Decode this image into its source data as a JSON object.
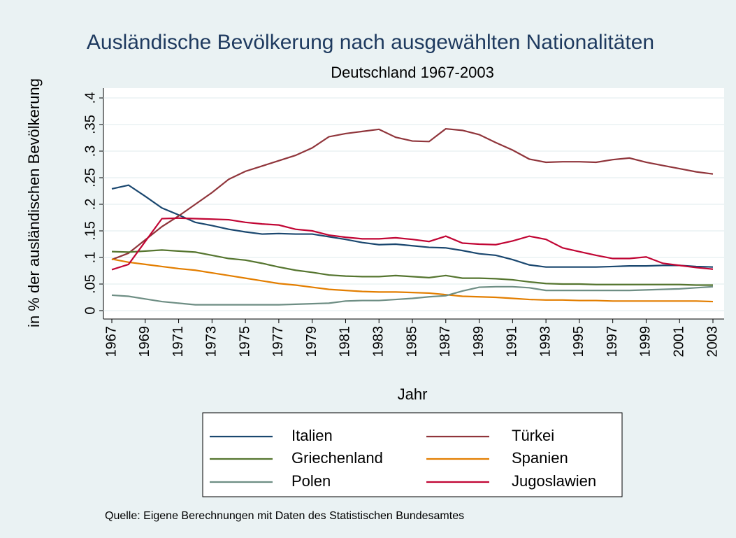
{
  "chart_data": {
    "type": "line",
    "title": "Ausländische Bevölkerung nach ausgewählten Nationalitäten",
    "subtitle": "Deutschland 1967-2003",
    "y_label": "in % der ausländischen Bevölkerung",
    "x_label": "Jahr",
    "note": "Quelle: Eigene Berechnungen mit Daten des Statistischen Bundesamtes",
    "legend_position": "bottom",
    "grid": true,
    "x": [
      1967,
      1968,
      1969,
      1970,
      1971,
      1972,
      1973,
      1974,
      1975,
      1976,
      1977,
      1978,
      1979,
      1980,
      1981,
      1982,
      1983,
      1984,
      1985,
      1986,
      1987,
      1988,
      1989,
      1990,
      1991,
      1992,
      1993,
      1994,
      1995,
      1996,
      1997,
      1998,
      1999,
      2000,
      2001,
      2002,
      2003
    ],
    "xlim": [
      1967,
      2003
    ],
    "xticks": [
      1967,
      1969,
      1971,
      1973,
      1975,
      1977,
      1979,
      1981,
      1983,
      1985,
      1987,
      1989,
      1991,
      1993,
      1995,
      1997,
      1999,
      2001,
      2003
    ],
    "ylim": [
      0,
      0.4
    ],
    "yticks": [
      0,
      {
        "value": 0.05,
        "label": ".05"
      },
      {
        "value": 0.1,
        "label": ".1"
      },
      {
        "value": 0.15,
        "label": ".15"
      },
      {
        "value": 0.2,
        "label": ".2"
      },
      {
        "value": 0.25,
        "label": ".25"
      },
      {
        "value": 0.3,
        "label": ".3"
      },
      {
        "value": 0.35,
        "label": ".35"
      },
      {
        "value": 0.4,
        "label": ".4"
      }
    ],
    "series": [
      {
        "name": "Italien",
        "color": "#1a476f",
        "values": [
          0.229,
          0.236,
          0.215,
          0.193,
          0.18,
          0.166,
          0.16,
          0.153,
          0.148,
          0.144,
          0.145,
          0.144,
          0.144,
          0.139,
          0.134,
          0.128,
          0.124,
          0.125,
          0.122,
          0.119,
          0.118,
          0.113,
          0.107,
          0.104,
          0.096,
          0.086,
          0.082,
          0.082,
          0.082,
          0.082,
          0.083,
          0.084,
          0.084,
          0.085,
          0.085,
          0.083,
          0.082
        ]
      },
      {
        "name": "Türkei",
        "color": "#90353b",
        "values": [
          0.096,
          0.108,
          0.133,
          0.158,
          0.178,
          0.2,
          0.222,
          0.247,
          0.262,
          0.272,
          0.282,
          0.292,
          0.306,
          0.327,
          0.333,
          0.337,
          0.341,
          0.326,
          0.319,
          0.318,
          0.342,
          0.339,
          0.331,
          0.316,
          0.302,
          0.285,
          0.279,
          0.28,
          0.28,
          0.279,
          0.284,
          0.287,
          0.279,
          0.273,
          0.267,
          0.261,
          0.257
        ]
      },
      {
        "name": "Griechenland",
        "color": "#55752f",
        "values": [
          0.111,
          0.11,
          0.112,
          0.114,
          0.112,
          0.11,
          0.104,
          0.098,
          0.095,
          0.089,
          0.082,
          0.076,
          0.072,
          0.067,
          0.065,
          0.064,
          0.064,
          0.066,
          0.064,
          0.062,
          0.066,
          0.061,
          0.061,
          0.06,
          0.058,
          0.054,
          0.051,
          0.05,
          0.05,
          0.049,
          0.049,
          0.049,
          0.049,
          0.049,
          0.049,
          0.048,
          0.048
        ]
      },
      {
        "name": "Spanien",
        "color": "#e37e00",
        "values": [
          0.097,
          0.091,
          0.087,
          0.083,
          0.079,
          0.076,
          0.071,
          0.066,
          0.061,
          0.056,
          0.051,
          0.048,
          0.044,
          0.04,
          0.038,
          0.036,
          0.035,
          0.035,
          0.034,
          0.033,
          0.03,
          0.027,
          0.026,
          0.025,
          0.023,
          0.021,
          0.02,
          0.02,
          0.019,
          0.019,
          0.018,
          0.018,
          0.018,
          0.018,
          0.018,
          0.018,
          0.017
        ]
      },
      {
        "name": "Polen",
        "color": "#6e8e84",
        "values": [
          0.029,
          0.027,
          0.022,
          0.017,
          0.014,
          0.011,
          0.011,
          0.011,
          0.011,
          0.011,
          0.011,
          0.012,
          0.013,
          0.014,
          0.018,
          0.019,
          0.019,
          0.021,
          0.023,
          0.026,
          0.028,
          0.037,
          0.044,
          0.045,
          0.045,
          0.043,
          0.038,
          0.038,
          0.038,
          0.038,
          0.038,
          0.038,
          0.039,
          0.04,
          0.041,
          0.043,
          0.045
        ]
      },
      {
        "name": "Jugoslawien",
        "color": "#c10534",
        "values": [
          0.077,
          0.087,
          0.13,
          0.173,
          0.174,
          0.173,
          0.172,
          0.171,
          0.166,
          0.163,
          0.161,
          0.153,
          0.15,
          0.142,
          0.138,
          0.135,
          0.135,
          0.137,
          0.134,
          0.13,
          0.14,
          0.127,
          0.125,
          0.124,
          0.131,
          0.14,
          0.134,
          0.118,
          0.111,
          0.104,
          0.098,
          0.098,
          0.101,
          0.089,
          0.085,
          0.081,
          0.078
        ]
      }
    ]
  }
}
